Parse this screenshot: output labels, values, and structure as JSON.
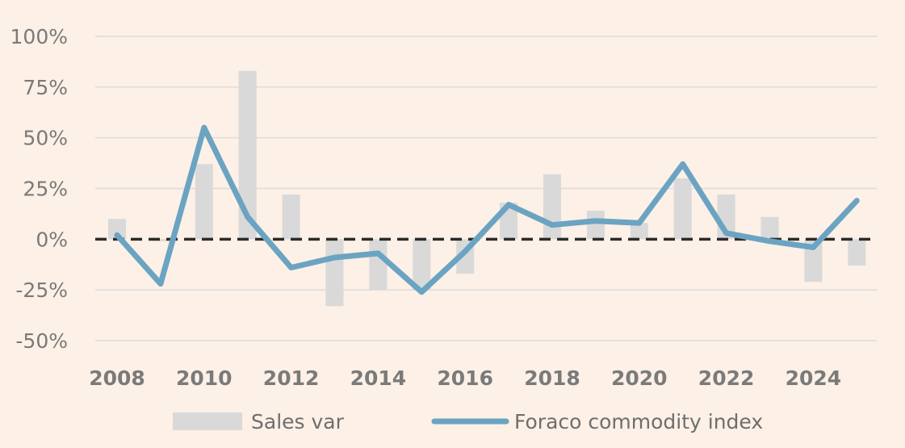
{
  "chart_data": {
    "type": "bar+line",
    "x": [
      2008,
      2009,
      2010,
      2011,
      2012,
      2013,
      2014,
      2015,
      2016,
      2017,
      2018,
      2019,
      2020,
      2021,
      2022,
      2023,
      2024,
      2025
    ],
    "x_tick_labels": [
      "2008",
      "2010",
      "2012",
      "2014",
      "2016",
      "2018",
      "2020",
      "2022",
      "2024"
    ],
    "y_tick_labels": [
      "100%",
      "75%",
      "50%",
      "25%",
      "0%",
      "-25%",
      "-50%"
    ],
    "ylim": [
      -50,
      100
    ],
    "y_unit": "%",
    "grid": true,
    "zero_line": "dashed",
    "legend_position": "bottom",
    "series": [
      {
        "name": "Sales var",
        "kind": "bar",
        "color": "#d9d9d9",
        "values": [
          10,
          -1,
          37,
          83,
          22,
          -33,
          -25,
          -25,
          -17,
          18,
          32,
          14,
          8,
          30,
          22,
          11,
          -21,
          -13
        ]
      },
      {
        "name": "Foraco commodity index",
        "kind": "line",
        "color": "#6ba4c2",
        "values": [
          2,
          -22,
          55,
          11,
          -14,
          -9,
          -7,
          -26,
          -6,
          17,
          7,
          9,
          8,
          37,
          3,
          -1,
          -4,
          19
        ]
      }
    ]
  }
}
